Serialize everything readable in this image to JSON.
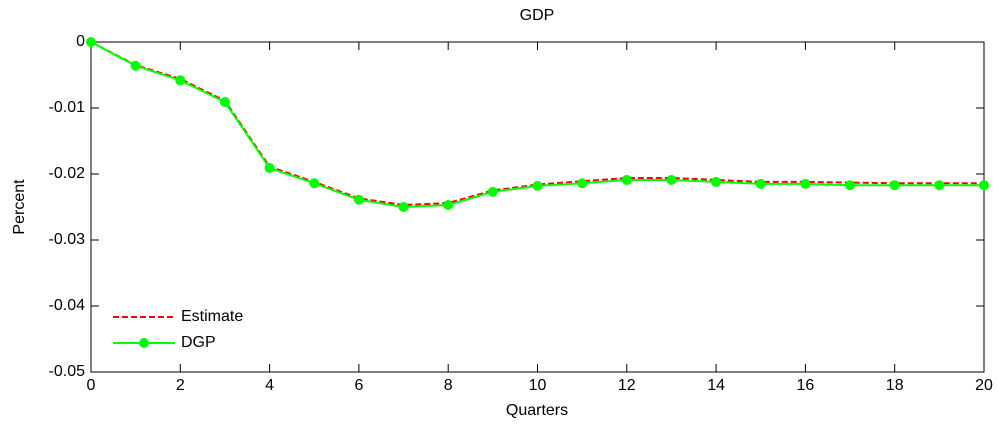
{
  "chart_data": {
    "type": "line",
    "title": "GDP",
    "x_label": "Quarters",
    "y_label": "Percent",
    "x": [
      0,
      1,
      2,
      3,
      4,
      5,
      6,
      7,
      8,
      9,
      10,
      11,
      12,
      13,
      14,
      15,
      16,
      17,
      18,
      19,
      20
    ],
    "series": [
      {
        "name": "Estimate",
        "color": "#ff0000",
        "linestyle": "dashed",
        "marker": "none",
        "values": [
          0,
          -0.0035,
          -0.0056,
          -0.0089,
          -0.0189,
          -0.0212,
          -0.0237,
          -0.0247,
          -0.0244,
          -0.0225,
          -0.0216,
          -0.0211,
          -0.0206,
          -0.0206,
          -0.0209,
          -0.0212,
          -0.0212,
          -0.0213,
          -0.0214,
          -0.0214,
          -0.0214
        ]
      },
      {
        "name": "DGP",
        "color": "#00ff00",
        "linestyle": "solid",
        "marker": "circle",
        "values": [
          0,
          -0.0036,
          -0.0058,
          -0.0091,
          -0.0191,
          -0.0214,
          -0.0239,
          -0.025,
          -0.0247,
          -0.0227,
          -0.0218,
          -0.0214,
          -0.0209,
          -0.0209,
          -0.0212,
          -0.0215,
          -0.0215,
          -0.0217,
          -0.0217,
          -0.0217,
          -0.0217
        ]
      }
    ],
    "xlim": [
      0,
      20
    ],
    "xticks": [
      0,
      2,
      4,
      6,
      8,
      10,
      12,
      14,
      16,
      18,
      20
    ],
    "ylim": [
      -0.05,
      0
    ],
    "yticks": [
      -0.05,
      -0.04,
      -0.03,
      -0.02,
      -0.01,
      0
    ],
    "grid": false,
    "legend": "lower left"
  }
}
